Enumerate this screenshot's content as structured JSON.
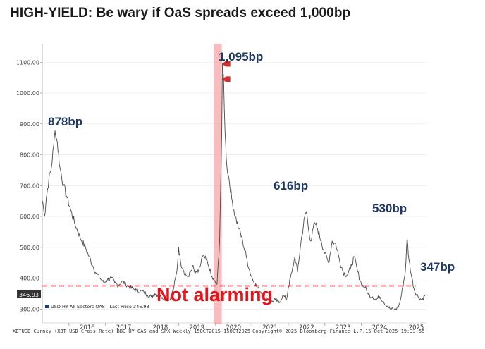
{
  "title": "HIGH-YIELD: Be wary if OaS spreads exceed 1,000bp",
  "chart_data": {
    "type": "line",
    "series_name": "USD HY All Sectors OAS - Last Price 346.93",
    "y_ticks": [
      "300.00",
      "400.00",
      "500.00",
      "600.00",
      "700.00",
      "800.00",
      "900.00",
      "1000.00",
      "1100.00"
    ],
    "ylim": [
      255,
      1160
    ],
    "x_ticks": [
      "2016",
      "2017",
      "2018",
      "2019",
      "2020",
      "2021",
      "2022",
      "2023",
      "2024",
      "2025"
    ],
    "xlim": [
      2015.27,
      2025.78
    ],
    "last_value": 346.93,
    "last_value_label": "346.93",
    "threshold": 375,
    "highlight_period": [
      2019.96,
      2020.18
    ],
    "peak_marker_values": [
      1095,
      1045
    ],
    "points": [
      [
        2015.28,
        650
      ],
      [
        2015.33,
        600
      ],
      [
        2015.38,
        660
      ],
      [
        2015.45,
        720
      ],
      [
        2015.52,
        760
      ],
      [
        2015.58,
        830
      ],
      [
        2015.62,
        878
      ],
      [
        2015.68,
        840
      ],
      [
        2015.75,
        760
      ],
      [
        2015.85,
        700
      ],
      [
        2015.95,
        660
      ],
      [
        2016.05,
        620
      ],
      [
        2016.15,
        580
      ],
      [
        2016.25,
        550
      ],
      [
        2016.35,
        520
      ],
      [
        2016.45,
        500
      ],
      [
        2016.55,
        470
      ],
      [
        2016.65,
        440
      ],
      [
        2016.75,
        415
      ],
      [
        2016.85,
        400
      ],
      [
        2016.95,
        385
      ],
      [
        2017.05,
        395
      ],
      [
        2017.15,
        400
      ],
      [
        2017.25,
        385
      ],
      [
        2017.35,
        378
      ],
      [
        2017.45,
        390
      ],
      [
        2017.55,
        382
      ],
      [
        2017.65,
        372
      ],
      [
        2017.75,
        365
      ],
      [
        2017.85,
        360
      ],
      [
        2017.95,
        358
      ],
      [
        2018.05,
        355
      ],
      [
        2018.15,
        345
      ],
      [
        2018.25,
        340
      ],
      [
        2018.35,
        350
      ],
      [
        2018.45,
        345
      ],
      [
        2018.55,
        338
      ],
      [
        2018.65,
        332
      ],
      [
        2018.75,
        330
      ],
      [
        2018.85,
        360
      ],
      [
        2018.95,
        420
      ],
      [
        2019.0,
        500
      ],
      [
        2019.05,
        455
      ],
      [
        2019.12,
        430
      ],
      [
        2019.2,
        410
      ],
      [
        2019.28,
        405
      ],
      [
        2019.38,
        440
      ],
      [
        2019.45,
        415
      ],
      [
        2019.55,
        420
      ],
      [
        2019.65,
        470
      ],
      [
        2019.75,
        460
      ],
      [
        2019.82,
        440
      ],
      [
        2019.9,
        405
      ],
      [
        2019.97,
        390
      ],
      [
        2020.05,
        380
      ],
      [
        2020.12,
        520
      ],
      [
        2020.18,
        880
      ],
      [
        2020.2,
        1095
      ],
      [
        2020.23,
        1045
      ],
      [
        2020.27,
        870
      ],
      [
        2020.32,
        760
      ],
      [
        2020.38,
        720
      ],
      [
        2020.45,
        660
      ],
      [
        2020.55,
        600
      ],
      [
        2020.65,
        560
      ],
      [
        2020.75,
        520
      ],
      [
        2020.85,
        470
      ],
      [
        2020.95,
        420
      ],
      [
        2021.05,
        390
      ],
      [
        2021.15,
        370
      ],
      [
        2021.25,
        355
      ],
      [
        2021.35,
        345
      ],
      [
        2021.45,
        330
      ],
      [
        2021.55,
        325
      ],
      [
        2021.65,
        330
      ],
      [
        2021.75,
        320
      ],
      [
        2021.85,
        345
      ],
      [
        2021.95,
        330
      ],
      [
        2022.0,
        370
      ],
      [
        2022.1,
        420
      ],
      [
        2022.18,
        470
      ],
      [
        2022.25,
        420
      ],
      [
        2022.35,
        520
      ],
      [
        2022.45,
        600
      ],
      [
        2022.5,
        616
      ],
      [
        2022.55,
        560
      ],
      [
        2022.62,
        520
      ],
      [
        2022.72,
        580
      ],
      [
        2022.8,
        560
      ],
      [
        2022.9,
        520
      ],
      [
        2023.0,
        480
      ],
      [
        2023.1,
        450
      ],
      [
        2023.2,
        520
      ],
      [
        2023.3,
        510
      ],
      [
        2023.4,
        460
      ],
      [
        2023.5,
        420
      ],
      [
        2023.6,
        410
      ],
      [
        2023.7,
        430
      ],
      [
        2023.8,
        470
      ],
      [
        2023.9,
        420
      ],
      [
        2024.0,
        380
      ],
      [
        2024.1,
        370
      ],
      [
        2024.2,
        345
      ],
      [
        2024.3,
        340
      ],
      [
        2024.4,
        330
      ],
      [
        2024.5,
        340
      ],
      [
        2024.6,
        325
      ],
      [
        2024.7,
        310
      ],
      [
        2024.8,
        300
      ],
      [
        2024.9,
        298
      ],
      [
        2025.0,
        305
      ],
      [
        2025.05,
        320
      ],
      [
        2025.1,
        350
      ],
      [
        2025.2,
        420
      ],
      [
        2025.25,
        530
      ],
      [
        2025.3,
        460
      ],
      [
        2025.38,
        400
      ],
      [
        2025.45,
        360
      ],
      [
        2025.55,
        340
      ],
      [
        2025.65,
        330
      ],
      [
        2025.75,
        346.93
      ]
    ]
  },
  "annotations": {
    "peak_2015": "878bp",
    "peak_2020": "1,095bp",
    "peak_2022": "616bp",
    "peak_2025": "530bp",
    "last": "347bp",
    "not_alarming": "Not alarming"
  },
  "legend": "USD HY All Sectors OAS - Last Price 346.93",
  "footer": {
    "left": "XBTUSD Curncy (XBT-USD Cross Rate) BBG HY OAS and SPX Weekly 15OCT2015-15OCT2025",
    "mid": "Copyright© 2025 Bloomberg Finance L.P.",
    "right": "15-Oct-2025 19:33:55"
  },
  "colors": {
    "line": "#4a4a4a",
    "highlight": "#f4a6a8",
    "threshold": "#d0021b",
    "note": "#e8141c",
    "annotation": "#1f3864",
    "marker": "#d32f2f"
  }
}
